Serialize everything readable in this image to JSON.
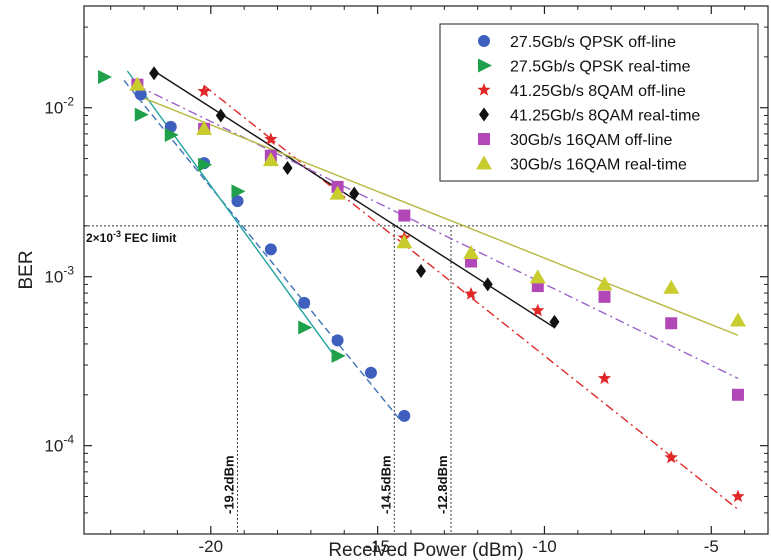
{
  "chart_data": {
    "type": "scatter",
    "title": "",
    "xlabel": "Received Power (dBm)",
    "ylabel": "BER",
    "xlim": [
      -23.8,
      -3.3
    ],
    "ylim": [
      3e-05,
      0.04
    ],
    "yscale": "log",
    "x_ticks": [
      -20,
      -15,
      -10,
      -5
    ],
    "x_tick_labels": [
      "-20",
      "-15",
      "-10",
      "-5"
    ],
    "y_ticks": [
      0.01,
      0.001,
      0.0001
    ],
    "y_tick_labels": [
      {
        "base": "10",
        "exp": "-2"
      },
      {
        "base": "10",
        "exp": "-3"
      },
      {
        "base": "10",
        "exp": "-4"
      }
    ],
    "legend_position": "top-right",
    "fec_limit": {
      "value": 0.002,
      "label_base": "2×10",
      "label_exp": "-3",
      "label_rest": " FEC limit"
    },
    "vlines": [
      {
        "x": -19.2,
        "label": "-19.2dBm"
      },
      {
        "x": -14.5,
        "label": "-14.5dBm"
      },
      {
        "x": -12.8,
        "label": "-12.8dBm"
      }
    ],
    "series": [
      {
        "name": "27.5Gb/s QPSK off-line",
        "marker": "circle",
        "color": "#3f5fbf",
        "line_style": "dashed",
        "line_color": "#3f72b8",
        "x": [
          -22.1,
          -21.2,
          -20.2,
          -19.2,
          -18.2,
          -17.2,
          -16.2,
          -15.2,
          -14.2
        ],
        "y": [
          0.012,
          0.0077,
          0.0047,
          0.0028,
          0.00145,
          0.0007,
          0.00042,
          0.00027,
          0.00015
        ],
        "fit": [
          [
            -22.6,
            0.0145
          ],
          [
            -14.3,
            0.00014
          ]
        ]
      },
      {
        "name": "27.5Gb/s QPSK real-time",
        "marker": "triangle-right",
        "color": "#1fa04a",
        "line_style": "solid",
        "line_color": "#22a3a0",
        "x": [
          -23.2,
          -22.1,
          -21.2,
          -20.2,
          -19.2,
          -17.2,
          -16.2
        ],
        "y": [
          0.0152,
          0.0091,
          0.0069,
          0.0046,
          0.0032,
          0.0005,
          0.00034
        ],
        "fit": [
          [
            -22.5,
            0.0165
          ],
          [
            -16.2,
            0.00032
          ]
        ]
      },
      {
        "name": "41.25Gb/s 8QAM off-line",
        "marker": "star",
        "color": "#e02828",
        "line_style": "dashdot",
        "line_color": "#e02828",
        "x": [
          -20.2,
          -18.2,
          -16.2,
          -14.2,
          -12.2,
          -10.2,
          -8.2,
          -6.2,
          -4.2
        ],
        "y": [
          0.0125,
          0.0065,
          0.0033,
          0.0017,
          0.00079,
          0.00063,
          0.00025,
          8.5e-05,
          5e-05
        ],
        "fit": [
          [
            -20.2,
            0.0135
          ],
          [
            -4.2,
            4.2e-05
          ]
        ]
      },
      {
        "name": "41.25Gb/s 8QAM real-time",
        "marker": "diamond",
        "color": "#111111",
        "line_style": "solid",
        "line_color": "#111111",
        "x": [
          -21.7,
          -19.7,
          -17.7,
          -15.7,
          -13.7,
          -11.7,
          -9.7
        ],
        "y": [
          0.016,
          0.009,
          0.0044,
          0.0031,
          0.00108,
          0.0009,
          0.00054
        ],
        "fit": [
          [
            -21.7,
            0.0165
          ],
          [
            -9.7,
            0.0005
          ]
        ]
      },
      {
        "name": "30Gb/s 16QAM off-line",
        "marker": "square",
        "color": "#b248b8",
        "line_style": "dashdot",
        "line_color": "#9a62c8",
        "x": [
          -22.2,
          -20.2,
          -18.2,
          -16.2,
          -14.2,
          -12.2,
          -10.2,
          -8.2,
          -6.2,
          -4.2
        ],
        "y": [
          0.0137,
          0.0075,
          0.0052,
          0.0034,
          0.0023,
          0.00123,
          0.00088,
          0.00076,
          0.00053,
          0.0002
        ],
        "fit": [
          [
            -22.2,
            0.0135
          ],
          [
            -4.2,
            0.00025
          ]
        ]
      },
      {
        "name": "30Gb/s 16QAM real-time",
        "marker": "triangle-up",
        "color": "#c8cc2c",
        "line_style": "solid",
        "line_color": "#b8b840",
        "x": [
          -22.2,
          -20.2,
          -18.2,
          -16.2,
          -14.2,
          -12.2,
          -10.2,
          -8.2,
          -6.2,
          -4.2
        ],
        "y": [
          0.0137,
          0.0075,
          0.0049,
          0.0031,
          0.0016,
          0.00138,
          0.00099,
          0.0009,
          0.00086,
          0.00055
        ],
        "fit": [
          [
            -22.2,
            0.0118
          ],
          [
            -4.2,
            0.00045
          ]
        ]
      }
    ]
  }
}
